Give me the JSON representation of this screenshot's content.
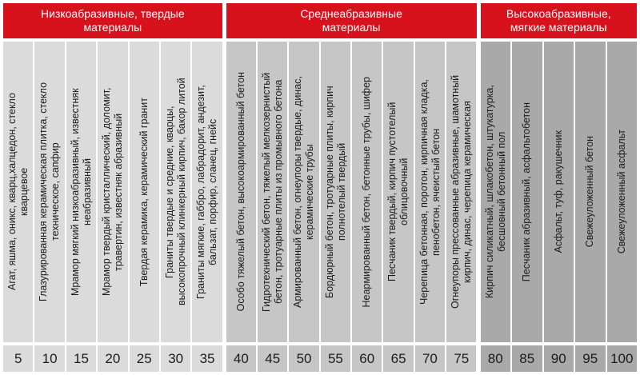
{
  "palette": {
    "red": "#d7121d",
    "header_text": "#ffffff",
    "group1_bg": "#dbdbdb",
    "group2_bg": "#c6c6c6",
    "group3_bg": "#a9a9a9",
    "text": "#1b1b1b",
    "gap": "#ffffff"
  },
  "chart_data": {
    "type": "table",
    "description": "Material abrasiveness scale: materials grouped by abrasiveness class with values 5-100",
    "groups": [
      {
        "title": "Низкоабразивные, твердые материалы",
        "columns": [
          {
            "label": "Агат, яшма, оникс, кварц,халцедон, стекло кварцевое",
            "value": 5
          },
          {
            "label": "Глазурированная керамическая плитка, стекло техническое, сапфир",
            "value": 10
          },
          {
            "label": "Мрамор мягкий низкоабразивный, известняк неабразивный",
            "value": 15
          },
          {
            "label": "Мрамор твердый кристаллический, доломит, травертин, известняк абразивный",
            "value": 20
          },
          {
            "label": "Твердая керамика, керамический гранит",
            "value": 25
          },
          {
            "label": "Граниты твердые и средние, кварцы, высокопрочный клинкерный кирпич, бакор литой",
            "value": 30
          },
          {
            "label": "Граниты мягкие, габбро, лабрадорит, андезит, бальзат, порфир, сланец, гнейс",
            "value": 35
          }
        ]
      },
      {
        "title": "Среднеабразивные материалы",
        "columns": [
          {
            "label": "Особо тяжелый бетон, высокоармированный бетон",
            "value": 40
          },
          {
            "label": "Гидротехнический бетон, тяжелый мелкозернистый бетон, тротуарные плиты из промывного бетона",
            "value": 45
          },
          {
            "label": "Армированный бетон, огнеупоры твердые, динас, керамические трубы",
            "value": 50
          },
          {
            "label": "Бордюрный бетон, тротуарные плиты, кирпич полнотелый твердый",
            "value": 55
          },
          {
            "label": "Неармированный бетон, бетонные трубы, шифер",
            "value": 60
          },
          {
            "label": "Песчаник твердый, кирпич пустотелый облицовочный",
            "value": 65
          },
          {
            "label": "Черепица бетонная, поротон, кирпичная кладка, пенобетон, ячеистый бетон",
            "value": 70
          },
          {
            "label": "Огнеупоры прессованные абразивные, шамотный кирпич, динас, черепица керамическая",
            "value": 75
          }
        ]
      },
      {
        "title": "Высокоабразивные, мягкие материалы",
        "columns": [
          {
            "label": "Кирпич силикатный, шлакобетон, штукатурка, бесшовный бетонный пол",
            "value": 80
          },
          {
            "label": "Песчаник абразивный, асфальтобетон",
            "value": 85
          },
          {
            "label": "Асфальт, туф, ракушечник",
            "value": 90
          },
          {
            "label": "Свежеуложенный бетон",
            "value": 95
          },
          {
            "label": "Свежеуложенный асфальт",
            "value": 100
          }
        ]
      }
    ]
  }
}
